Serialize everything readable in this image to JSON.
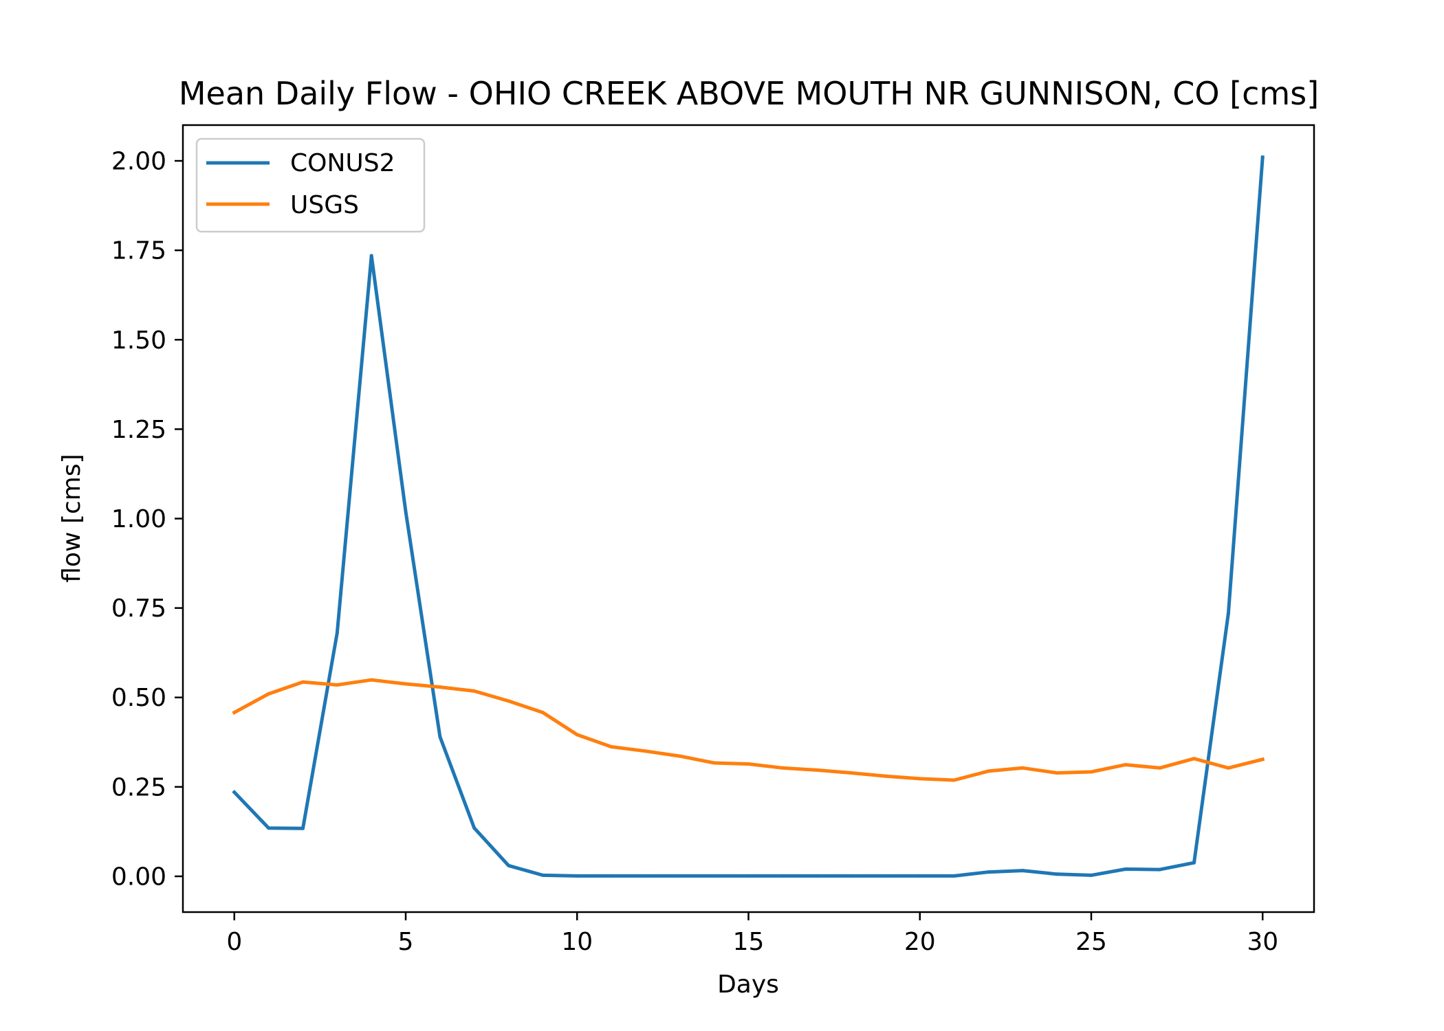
{
  "chart_data": {
    "type": "line",
    "title": "Mean Daily Flow - OHIO CREEK ABOVE MOUTH NR GUNNISON, CO [cms]",
    "xlabel": "Days",
    "ylabel": "flow [cms]",
    "xlim": [
      -1.5,
      31.5
    ],
    "ylim": [
      -0.1,
      2.1
    ],
    "xticks": [
      0,
      5,
      10,
      15,
      20,
      25,
      30
    ],
    "xtick_labels": [
      "0",
      "5",
      "10",
      "15",
      "20",
      "25",
      "30"
    ],
    "yticks": [
      0,
      0.25,
      0.5,
      0.75,
      1.0,
      1.25,
      1.5,
      1.75,
      2.0
    ],
    "ytick_labels": [
      "0.00",
      "0.25",
      "0.50",
      "0.75",
      "1.00",
      "1.25",
      "1.50",
      "1.75",
      "2.00"
    ],
    "grid": false,
    "legend_position": "upper-left",
    "x": [
      0,
      1,
      2,
      3,
      4,
      5,
      6,
      7,
      8,
      9,
      10,
      11,
      12,
      13,
      14,
      15,
      16,
      17,
      18,
      19,
      20,
      21,
      22,
      23,
      24,
      25,
      26,
      27,
      28,
      29,
      30
    ],
    "series": [
      {
        "name": "CONUS2",
        "color": "#1f77b4",
        "values": [
          0.235,
          0.135,
          0.134,
          0.68,
          1.735,
          1.02,
          0.39,
          0.135,
          0.03,
          0.003,
          0.001,
          0.001,
          0.001,
          0.001,
          0.001,
          0.001,
          0.001,
          0.001,
          0.001,
          0.001,
          0.001,
          0.001,
          0.012,
          0.016,
          0.006,
          0.003,
          0.02,
          0.019,
          0.038,
          0.735,
          2.01
        ]
      },
      {
        "name": "USGS",
        "color": "#ff7f0e",
        "values": [
          0.458,
          0.51,
          0.543,
          0.535,
          0.549,
          0.538,
          0.529,
          0.518,
          0.49,
          0.458,
          0.396,
          0.362,
          0.35,
          0.336,
          0.317,
          0.314,
          0.303,
          0.297,
          0.289,
          0.28,
          0.273,
          0.269,
          0.294,
          0.303,
          0.289,
          0.292,
          0.312,
          0.303,
          0.329,
          0.303,
          0.327
        ]
      }
    ]
  }
}
